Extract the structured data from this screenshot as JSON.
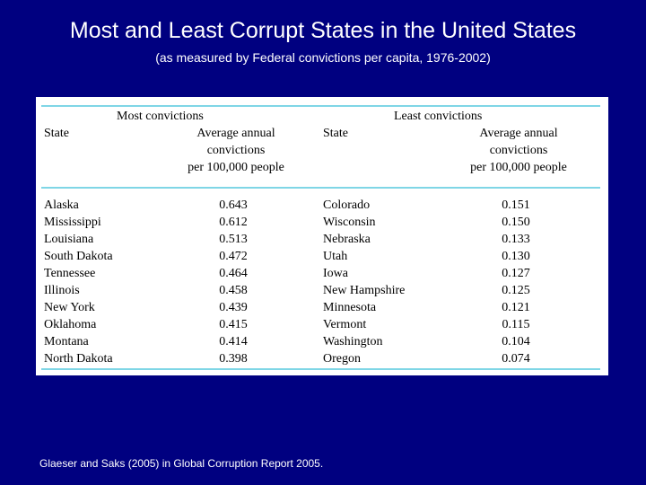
{
  "title": "Most and Least Corrupt States in the United States",
  "subtitle": "(as measured by Federal convictions per capita, 1976-2002)",
  "table": {
    "most_label": "Most convictions",
    "least_label": "Least convictions",
    "state_header": "State",
    "rate_header": "Average annual\nconvictions\nper 100,000 people",
    "most": {
      "states": [
        "Alaska",
        "Mississippi",
        "Louisiana",
        "South Dakota",
        "Tennessee",
        "Illinois",
        "New York",
        "Oklahoma",
        "Montana",
        "North Dakota"
      ],
      "rates": [
        "0.643",
        "0.612",
        "0.513",
        "0.472",
        "0.464",
        "0.458",
        "0.439",
        "0.415",
        "0.414",
        "0.398"
      ]
    },
    "least": {
      "states": [
        "Colorado",
        "Wisconsin",
        "Nebraska",
        "Utah",
        "Iowa",
        "New Hampshire",
        "Minnesota",
        "Vermont",
        "Washington",
        "Oregon"
      ],
      "rates": [
        "0.151",
        "0.150",
        "0.133",
        "0.130",
        "0.127",
        "0.125",
        "0.121",
        "0.115",
        "0.104",
        "0.074"
      ]
    }
  },
  "source": "Glaeser and Saks (2005) in Global Corruption Report 2005."
}
